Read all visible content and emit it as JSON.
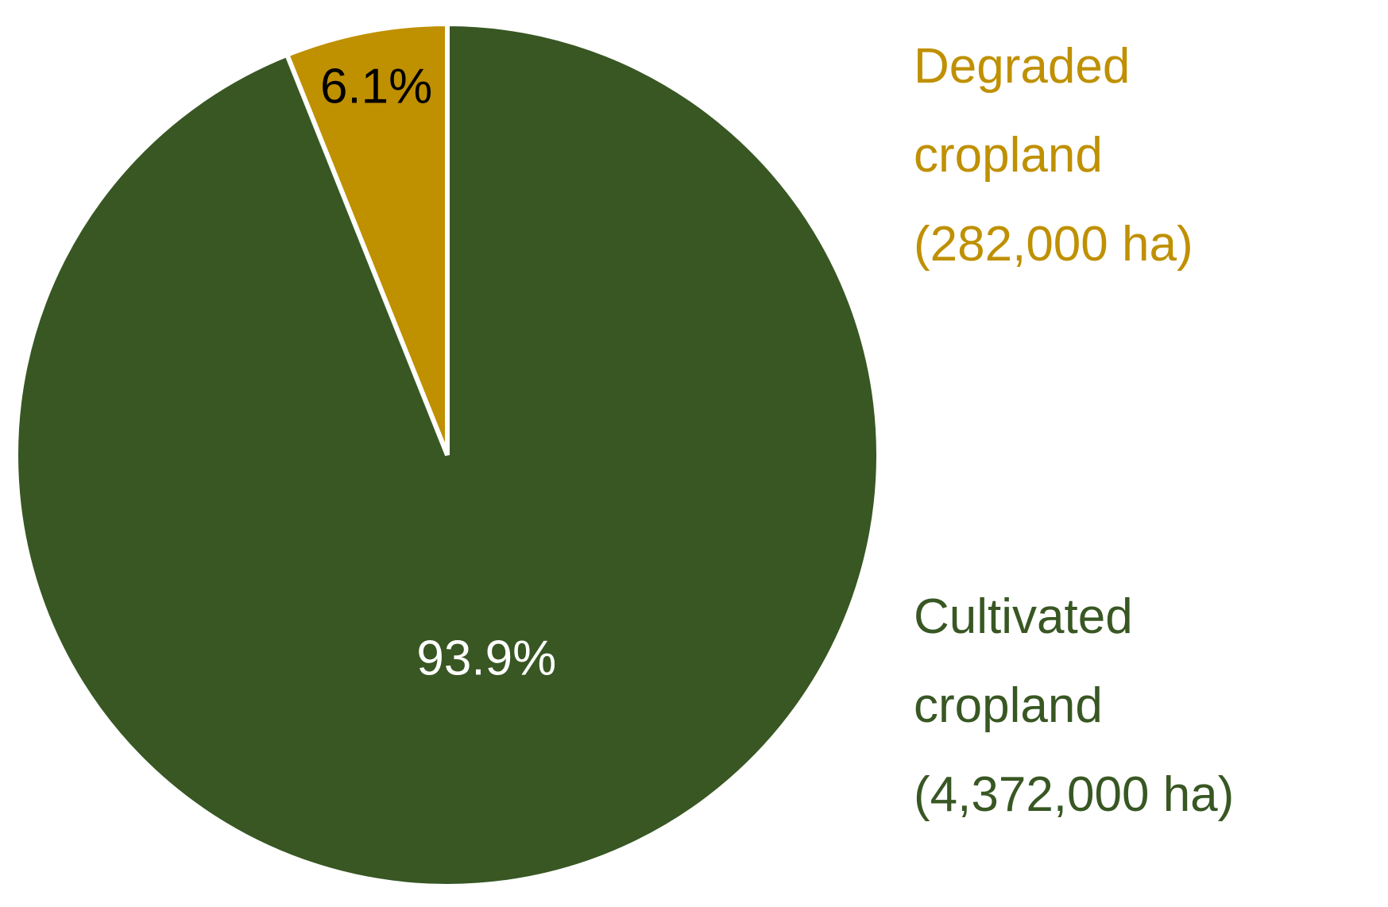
{
  "chart_data": {
    "type": "pie",
    "title": "",
    "slices": [
      {
        "label_lines": [
          "Degraded",
          "cropland",
          "(282,000 ha)"
        ],
        "value": 282000,
        "percent": 6.1,
        "percent_label": "6.1%",
        "color": "#BF9000",
        "percent_label_color": "#000000"
      },
      {
        "label_lines": [
          "Cultivated",
          "cropland",
          "(4,372,000 ha)"
        ],
        "value": 4372000,
        "percent": 93.9,
        "percent_label": "93.9%",
        "color": "#385723",
        "percent_label_color": "#ffffff"
      }
    ],
    "slice_order": "counterclockwise from top",
    "legend": "none",
    "category_labels_position": "right of pie"
  }
}
